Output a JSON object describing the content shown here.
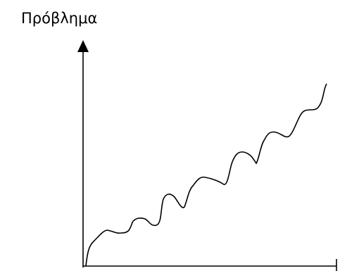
{
  "label": "Πρόβλημα"
}
